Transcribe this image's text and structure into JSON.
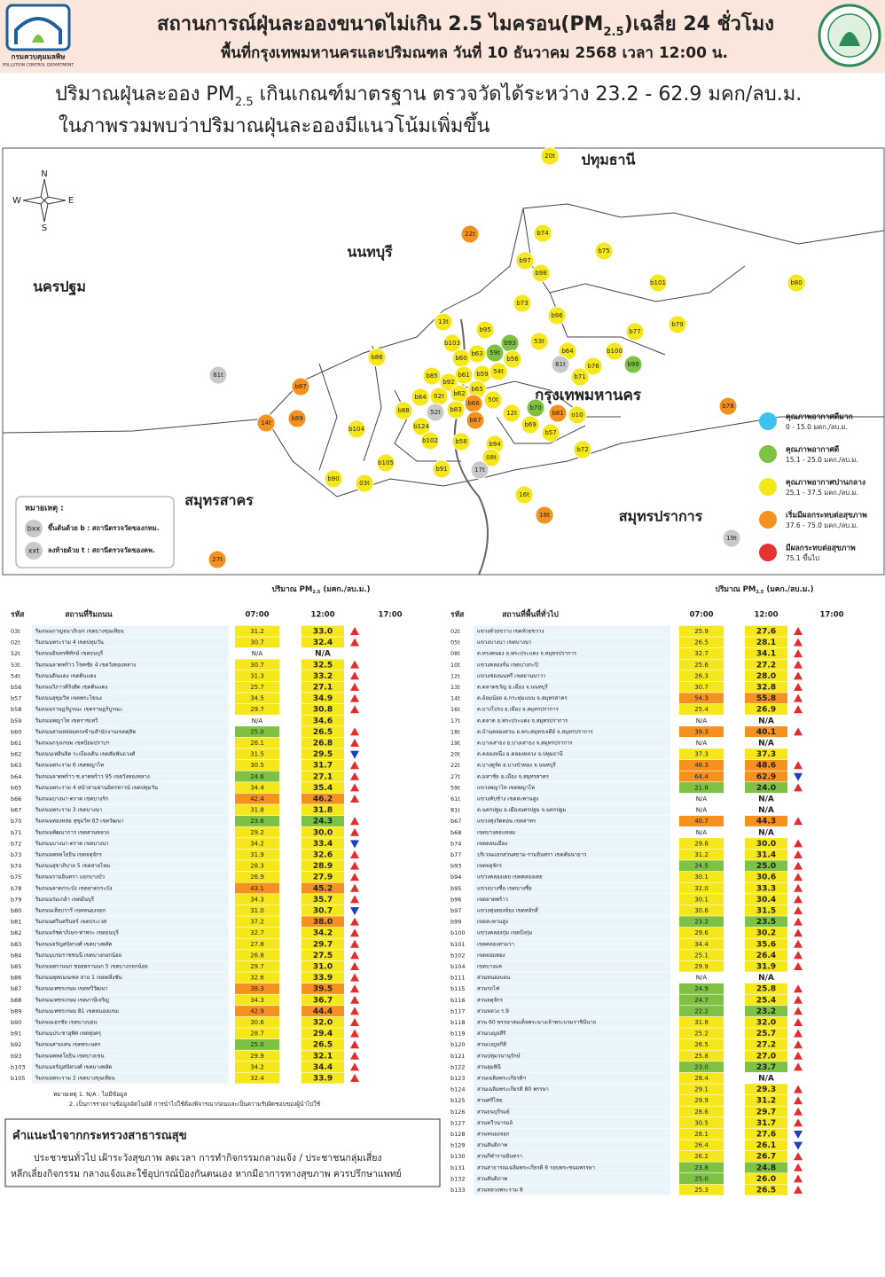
{
  "header": {
    "org_name": "กรมควบคุมมลพิษ",
    "org_name_en": "POLLUTION CONTROL DEPARTMENT",
    "title": [
      "สถานการณ์ฝุ่นละอองขนาดไม่เกิน 2.5 ไมครอน(PM",
      "2.5",
      ")เฉลี่ย 24 ชั่วโมง"
    ],
    "subtitle": "พื้นที่กรุงเทพมหานครและปริมณฑล วันที่ 10 ธันวาคม 2568 เวลา 12:00 น."
  },
  "summary": {
    "line1": [
      "ปริมาณฝุ่นละออง PM",
      "2.5",
      " เกินเกณฑ์มาตรฐาน ตรวจวัดได้ระหว่าง 23.2 - 62.9 มคก/ลบ.ม."
    ],
    "line2": "ในภาพรวมพบว่าปริมาณฝุ่นละอองมีแนวโน้มเพิ่มขึ้น"
  },
  "map": {
    "compass": [
      "N",
      "E",
      "S",
      "W"
    ],
    "regions": [
      "ปทุมธานี",
      "นนทบุรี",
      "นครปฐม",
      "กรุงเทพมหานคร",
      "สมุทรสาคร",
      "สมุทรปราการ"
    ],
    "legend": [
      {
        "name": "คุณภาพอากาศดีมาก",
        "range": "0 - 15.0 มคก./ลบ.ม.",
        "color": "#3ec3f0"
      },
      {
        "name": "คุณภาพอากาศดี",
        "range": "15.1 - 25.0 มคก./ลบ.ม.",
        "color": "#7dc242"
      },
      {
        "name": "คุณภาพอากาศปานกลาง",
        "range": "25.1 - 37.5 มคก./ลบ.ม.",
        "color": "#f6e71a"
      },
      {
        "name": "เริ่มมีผลกระทบต่อสุขภาพ",
        "range": "37.6 - 75.0 มคก./ลบ.ม.",
        "color": "#f5911e"
      },
      {
        "name": "มีผลกระทบต่อสุขภาพ",
        "range": "75.1 ขึ้นไป",
        "color": "#e63232"
      }
    ],
    "na_color": "#c9c9c9",
    "note": {
      "title": "หมายเหตุ :",
      "items": [
        {
          "symbol": "bxx",
          "text": "ขึ้นต้นด้วย b : สถานีตรวจวัดของกทม."
        },
        {
          "symbol": "xxt",
          "text": "ลงท้ายด้วย t : สถานีตรวจวัดของคพ."
        }
      ]
    },
    "stations": [
      {
        "label": "20t",
        "level": 2
      },
      {
        "label": "22t",
        "level": 3
      },
      {
        "label": "b74",
        "level": 2
      },
      {
        "label": "b75",
        "level": 2
      },
      {
        "label": "b97",
        "level": 2
      },
      {
        "label": "b98",
        "level": 2
      },
      {
        "label": "b101",
        "level": 2
      },
      {
        "label": "b80",
        "level": 2
      },
      {
        "label": "b73",
        "level": 2
      },
      {
        "label": "b96",
        "level": 2
      },
      {
        "label": "13t",
        "level": 2
      },
      {
        "label": "b95",
        "level": 2
      },
      {
        "label": "b77",
        "level": 2
      },
      {
        "label": "b79",
        "level": 2
      },
      {
        "label": "b93",
        "level": 1
      },
      {
        "label": "53t",
        "level": 2
      },
      {
        "label": "b103",
        "level": 2
      },
      {
        "label": "59t",
        "level": 1
      },
      {
        "label": "b56",
        "level": 2
      },
      {
        "label": "b64",
        "level": 2
      },
      {
        "label": "b100",
        "level": 2
      },
      {
        "label": "b63",
        "level": 2
      },
      {
        "label": "b60",
        "level": 2
      },
      {
        "label": "61t",
        "level": null
      },
      {
        "label": "b99",
        "level": 1
      },
      {
        "label": "b86",
        "level": 2
      },
      {
        "label": "b76",
        "level": 2
      },
      {
        "label": "81t",
        "level": null
      },
      {
        "label": "b85",
        "level": 2
      },
      {
        "label": "b61",
        "level": 2
      },
      {
        "label": "b59",
        "level": 2
      },
      {
        "label": "54t",
        "level": 2
      },
      {
        "label": "b92",
        "level": 2
      },
      {
        "label": "b71",
        "level": 2
      },
      {
        "label": "b87",
        "level": 3
      },
      {
        "label": "b65",
        "level": 2
      },
      {
        "label": "b62",
        "level": 2
      },
      {
        "label": "02t",
        "level": 2
      },
      {
        "label": "b84",
        "level": 2
      },
      {
        "label": "50t",
        "level": 2
      },
      {
        "label": "b66",
        "level": 3
      },
      {
        "label": "b70",
        "level": 1
      },
      {
        "label": "b78",
        "level": 3
      },
      {
        "label": "b88",
        "level": 2
      },
      {
        "label": "52t",
        "level": null
      },
      {
        "label": "b83",
        "level": 2
      },
      {
        "label": "12t",
        "level": 2
      },
      {
        "label": "b81",
        "level": 3
      },
      {
        "label": "o10",
        "level": 2
      },
      {
        "label": "b89",
        "level": 3
      },
      {
        "label": "14t",
        "level": 3
      },
      {
        "label": "b67",
        "level": 3
      },
      {
        "label": "b124",
        "level": 2
      },
      {
        "label": "b69",
        "level": 2
      },
      {
        "label": "b104",
        "level": 2
      },
      {
        "label": "b57",
        "level": 2
      },
      {
        "label": "b102",
        "level": 2
      },
      {
        "label": "b58",
        "level": 2
      },
      {
        "label": "b94",
        "level": 2
      },
      {
        "label": "b72",
        "level": 2
      },
      {
        "label": "08t",
        "level": 2
      },
      {
        "label": "b105",
        "level": 2
      },
      {
        "label": "b91",
        "level": 2
      },
      {
        "label": "17t",
        "level": null
      },
      {
        "label": "b90",
        "level": 2
      },
      {
        "label": "03t",
        "level": 2
      },
      {
        "label": "16t",
        "level": 2
      },
      {
        "label": "18t",
        "level": 3
      },
      {
        "label": "19t",
        "level": null
      },
      {
        "label": "27t",
        "level": 3
      }
    ]
  },
  "tables": [
    {
      "unit_header": [
        "ปริมาณ PM",
        "2.5",
        " (มคก./ลบ.ม.)"
      ],
      "columns": [
        "รหัส",
        "สถานที่ริมถนน",
        "07:00",
        "12:00",
        "17:00"
      ],
      "rows": [
        [
          "03t",
          "ริมถนนกาญจนาภิเษก เขตบางขุนเทียน",
          "31.2",
          "33.0"
        ],
        [
          "02t",
          "ริมถนนพระราม 4 เขตปทุมวัน",
          "30.7",
          "32.4"
        ],
        [
          "52t",
          "ริมถนนอินทรพิทักษ์ เขตธนบุรี",
          "N/A",
          "N/A"
        ],
        [
          "53t",
          "ริมถนนลาดพร้าว โชคชัย 4 เขตวังทองหลาง",
          "30.7",
          "32.5"
        ],
        [
          "54t",
          "ริมถนนดินแดง เขตดินแดง",
          "31.3",
          "33.2"
        ],
        [
          "b56",
          "ริมถนนวิภาวดีรังสิต เขตดินแดง",
          "25.7",
          "27.1"
        ],
        [
          "b57",
          "ริมถนนสุขุมวิท เขตพระโขนง",
          "34.5",
          "34.9"
        ],
        [
          "b58",
          "ริมถนนราษฎร์บูรณะ เขตราษฎร์บูรณะ",
          "29.7",
          "30.8"
        ],
        [
          "b59",
          "ริมถนนพญาไท เขตราชเทวี",
          "N/A",
          "34.6"
        ],
        [
          "b60",
          "ริมถนนสวนหย่อมตรงข้ามสำนักงานเขตดุสิต",
          "25.0",
          "26.5"
        ],
        [
          "b61",
          "ริมถนนกรุงเกษม เขตป้อมปราบฯ",
          "26.1",
          "26.8"
        ],
        [
          "b62",
          "ริมถนนเพลินจิต ระเบียงเดิน เขตสัมพันธวงศ์",
          "31.5",
          "29.5"
        ],
        [
          "b63",
          "ริมถนนพระราม 6 เขตพญาไท",
          "30.5",
          "31.7"
        ],
        [
          "b64",
          "ริมถนนลาดพร้าว ซ.ลาดพร้าว 95 เขตวังทองหลาง",
          "24.6",
          "27.1"
        ],
        [
          "b65",
          "ริมถนนพระราม 4 หน้าสามย่านมิตรทาวน์ เขตปทุมวัน",
          "34.4",
          "35.4"
        ],
        [
          "b66",
          "ริมถนนบางนา-ตราด เขตบางรัก",
          "42.4",
          "46.2"
        ],
        [
          "b67",
          "ริมถนนพระราม 3 เขตบางนา",
          "31.8",
          "31.8"
        ],
        [
          "b70",
          "ริมถนนทองหล่อ สุขุมวิท 63 เขตวัฒนา",
          "23.6",
          "24.3"
        ],
        [
          "b71",
          "ริมถนนพัฒนาการ เขตสวนหลวง",
          "29.2",
          "30.0"
        ],
        [
          "b72",
          "ริมถนนบางนา-ตราด เขตบางนา",
          "34.2",
          "33.4"
        ],
        [
          "b73",
          "ริมถนนพหลโยธิน เขตจตุจักร",
          "31.9",
          "32.6"
        ],
        [
          "b74",
          "ริมถนนสุขาภิบาล 5 เขตสายไหม",
          "28.3",
          "28.9"
        ],
        [
          "b75",
          "ริมถนนรามอินทรา แยกบางบัว",
          "26.9",
          "27.9"
        ],
        [
          "b78",
          "ริมถนนลาดกระบัง เขตลาดกระบัง",
          "43.1",
          "45.2"
        ],
        [
          "b79",
          "ริมถนนร่มเกล้า เขตมีนบุรี",
          "34.3",
          "35.7"
        ],
        [
          "b80",
          "ริมถนนเลียบวารี เขตหนองจอก",
          "31.0",
          "30.7"
        ],
        [
          "b81",
          "ริมถนนศรีนครินทร์ เขตประเวศ",
          "37.2",
          "38.0"
        ],
        [
          "b82",
          "ริมถนนรัชดาภิเษก-ท่าพระ เขตธนบุรี",
          "32.7",
          "34.2"
        ],
        [
          "b83",
          "ริมถนนจรัญสนิทวงศ์ เขตบางพลัด",
          "27.8",
          "29.7"
        ],
        [
          "b84",
          "ริมถนนบรมราชชนนี เขตบางกอกน้อย",
          "26.8",
          "27.5"
        ],
        [
          "b85",
          "ริมถนนพรานนก ซอยพรานนก 5 เขตบางกอกน้อย",
          "29.7",
          "31.0"
        ],
        [
          "b86",
          "ริมถนนพุทธมณฑล สาย 1 เขตตลิ่งชัน",
          "32.6",
          "33.9"
        ],
        [
          "b87",
          "ริมถนนเพชรเกษม เขตทวีวัฒนา",
          "38.3",
          "39.5"
        ],
        [
          "b88",
          "ริมถนนเพชรเกษม เขตภาษีเจริญ",
          "34.3",
          "36.7"
        ],
        [
          "b89",
          "ริมถนนเพชรเกษม 81 เขตหนองแขม",
          "42.9",
          "44.4"
        ],
        [
          "b90",
          "ริมถนนเอกชัย เขตบางบอน",
          "30.6",
          "32.0"
        ],
        [
          "b91",
          "ริมถนนประชาอุทิศ เขตทุ่งครุ",
          "28.7",
          "29.4"
        ],
        [
          "b92",
          "ริมถนนสามเสน เขตพระนคร",
          "25.0",
          "26.5"
        ],
        [
          "b93",
          "ริมถนนพหลโยธิน เขตบางเขน",
          "29.9",
          "32.1"
        ],
        [
          "b103",
          "ริมถนนจรัญสนิทวงศ์ เขตบางพลัด",
          "34.2",
          "34.4"
        ],
        [
          "b105",
          "ริมถนนพระราม 2 เขตบางขุนเทียน",
          "32.4",
          "33.9"
        ]
      ]
    },
    {
      "unit_header": [
        "ปริมาณ PM",
        "2.5",
        " (มคก./ลบ.ม.)"
      ],
      "columns": [
        "รหัส",
        "สถานที่พื้นที่ทั่วไป",
        "07:00",
        "12:00",
        "17:00"
      ],
      "rows": [
        [
          "02t",
          "แขวงห้วยขวาง เขตห้วยขวาง",
          "25.9",
          "27.6"
        ],
        [
          "05t",
          "แขวงบางนา เขตบางนา",
          "26.5",
          "28.1"
        ],
        [
          "08t",
          "ต.ทรงคนอง อ.พระประแดง จ.สมุทรปราการ",
          "32.7",
          "34.1"
        ],
        [
          "10t",
          "แขวงคลองจั่น เขตบางกะปิ",
          "25.6",
          "27.2"
        ],
        [
          "12t",
          "แขวงช่องนนทรี เขตยานนาวา",
          "26.3",
          "28.0"
        ],
        [
          "13t",
          "ต.ตลาดขวัญ อ.เมือง จ.นนทบุรี",
          "30.7",
          "32.8"
        ],
        [
          "14t",
          "ต.อ้อมน้อย อ.กระทุ่มแบน จ.สมุทรสาคร",
          "54.3",
          "55.8"
        ],
        [
          "16t",
          "ต.บางโปรง อ.เมือง จ.สมุทรปราการ",
          "25.4",
          "26.9"
        ],
        [
          "17t",
          "ต.ตลาด อ.พระประแดง จ.สมุทรปราการ",
          "N/A",
          "N/A"
        ],
        [
          "18t",
          "ต.บ้านคลองสวน อ.พระสมุทรเจดีย์ จ.สมุทรปราการ",
          "39.3",
          "40.1"
        ],
        [
          "19t",
          "ต.บางเสาธง อ.บางเสาธง จ.สมุทรปราการ",
          "N/A",
          "N/A"
        ],
        [
          "20t",
          "ต.คลองหนึ่ง อ.คลองหลวง จ.ปทุมธานี",
          "37.3",
          "37.3"
        ],
        [
          "22t",
          "ต.บางคูรัด อ.บางบัวทอง จ.นนทบุรี",
          "48.3",
          "48.6"
        ],
        [
          "27t",
          "ต.มหาชัย อ.เมือง จ.สมุทรสาคร",
          "64.4",
          "62.9"
        ],
        [
          "59t",
          "แขวงพญาไท เขตพญาไท",
          "21.8",
          "24.0"
        ],
        [
          "61t",
          "แขวงทับช้าง เขตสะพานสูง",
          "N/A",
          "N/A"
        ],
        [
          "81t",
          "ต.นครปฐม อ.เมืองนครปฐม จ.นครปฐม",
          "N/A",
          "N/A"
        ],
        [
          "b67",
          "แขวงทุ่งวัดดอน เขตสาทร",
          "40.7",
          "44.3"
        ],
        [
          "b68",
          "เขตบางคอแหลม",
          "N/A",
          "N/A"
        ],
        [
          "b74",
          "เขตดอนเมือง",
          "29.8",
          "30.0"
        ],
        [
          "b77",
          "บริเวณแยกสวนสยาม-รามอินทรา เขตคันนายาว",
          "31.2",
          "31.4"
        ],
        [
          "b93",
          "เขตจตุจักร",
          "24.5",
          "25.0"
        ],
        [
          "b94",
          "แขวงคลองเตย เขตคลองเตย",
          "30.1",
          "30.6"
        ],
        [
          "b95",
          "แขวงบางซื่อ เขตบางซื่อ",
          "32.0",
          "33.3"
        ],
        [
          "b96",
          "เขตลาดพร้าว",
          "30.1",
          "30.4"
        ],
        [
          "b97",
          "แขวงทุ่งสองห้อง เขตหลักสี่",
          "30.6",
          "31.5"
        ],
        [
          "b99",
          "เขตสะพานสูง",
          "23.2",
          "23.5"
        ],
        [
          "b100",
          "แขวงคลองกุ่ม เขตบึงกุ่ม",
          "29.6",
          "30.2"
        ],
        [
          "b101",
          "เขตคลองสามวา",
          "34.4",
          "35.6"
        ],
        [
          "b102",
          "เขตจอมทอง",
          "25.1",
          "26.4"
        ],
        [
          "b104",
          "เขตบางแค",
          "29.9",
          "31.9"
        ],
        [
          "b111",
          "สวนหนองบอน",
          "N/A",
          "N/A"
        ],
        [
          "b115",
          "สวนรถไฟ",
          "24.9",
          "25.8"
        ],
        [
          "b116",
          "สวนจตุจักร",
          "24.7",
          "25.4"
        ],
        [
          "b117",
          "สวนหลวง ร.9",
          "22.2",
          "23.2"
        ],
        [
          "b118",
          "สวน 60 พรรษาสมเด็จพระนางเจ้าพระบรมราชินีนาถ",
          "31.8",
          "32.0"
        ],
        [
          "b119",
          "สวนเบญจสิริ",
          "25.2",
          "25.7"
        ],
        [
          "b120",
          "สวนเบญจกิติ",
          "26.5",
          "27.2"
        ],
        [
          "b121",
          "สวนปทุมวนานุรักษ์",
          "25.8",
          "27.0"
        ],
        [
          "b122",
          "สวนลุมพินี",
          "23.0",
          "23.7"
        ],
        [
          "b123",
          "สวนเฉลิมพระเกียรติฯ",
          "28.4",
          "N/A"
        ],
        [
          "b124",
          "สวนเฉลิมพระเกียรติ 80 พรรษา",
          "29.1",
          "29.3"
        ],
        [
          "b125",
          "สวนศรีไทย",
          "29.9",
          "31.2"
        ],
        [
          "b126",
          "สวนธนบุรีรมย์",
          "28.6",
          "29.7"
        ],
        [
          "b127",
          "สวนทวีวนารมย์",
          "30.5",
          "31.7"
        ],
        [
          "b128",
          "สวนหนองจอก",
          "28.1",
          "27.6"
        ],
        [
          "b129",
          "สวนสันติภาพ",
          "26.4",
          "26.1"
        ],
        [
          "b130",
          "สวนกีฬารามอินทรา",
          "26.2",
          "26.7"
        ],
        [
          "b131",
          "สวนสาธารณเฉลิมพระเกียรติ 6 รอบพระชนมพรรษา",
          "23.8",
          "24.8"
        ],
        [
          "b132",
          "สวนสันติภาพ",
          "25.0",
          "26.0"
        ],
        [
          "b133",
          "สวนหลวงพระราม 8",
          "25.3",
          "26.5"
        ]
      ]
    }
  ],
  "footnotes": [
    "หมายเหตุ 1. N/A : ไม่มีข้อมูล",
    "2. เป็นการรายงานข้อมูลอัตโนมัติ การนำไปใช้ต้องพิจารณาก่อนและเป็นความรับผิดชอบของผู้นำไปใช้"
  ],
  "advice": {
    "title": "คำแนะนำจากกระทรวงสาธารณสุข",
    "lines": [
      "ประชาชนทั่วไป เฝ้าระวังสุขภาพ ลดเวลา การทำกิจกรรมกลางแจ้ง / ประชาชนกลุ่มเสี่ยง",
      "หลีกเลี่ยงกิจกรรม กลางแจ้งและใช้อุปกรณ์ป้องกันตนเอง หากมีอาการทางสุขภาพ ควรปรึกษาแพทย์"
    ]
  }
}
